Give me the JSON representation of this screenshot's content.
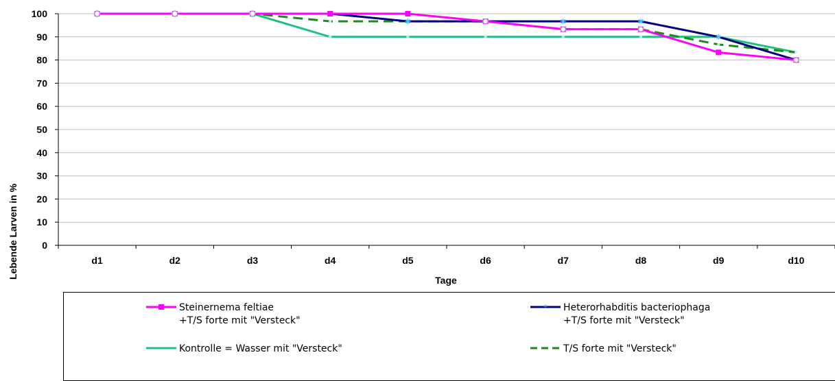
{
  "chart_data": {
    "type": "line",
    "categories": [
      "d1",
      "d2",
      "d3",
      "d4",
      "d5",
      "d6",
      "d7",
      "d8",
      "d9",
      "d10"
    ],
    "xlabel": "Tage",
    "ylabel": "Lebende Larven in %",
    "ylim": [
      0,
      100
    ],
    "yticks": [
      0,
      10,
      20,
      30,
      40,
      50,
      60,
      70,
      80,
      90,
      100
    ],
    "grid": true,
    "legend_position": "bottom",
    "series": [
      {
        "name_line1": "Steinernema feltiae",
        "name_line2": "+T/S forte mit \"Versteck\"",
        "color": "#ff00ff",
        "marker": "square",
        "dash": "solid",
        "values": [
          100,
          100,
          100,
          100,
          100,
          96.7,
          93.3,
          93.3,
          83.3,
          80
        ]
      },
      {
        "name_line1": "Heterorhabditis bacteriophaga",
        "name_line2": "+T/S forte mit \"Versteck\"",
        "color": "#000080",
        "marker": "star",
        "dash": "solid",
        "values": [
          100,
          100,
          100,
          100,
          96.7,
          96.7,
          96.7,
          96.7,
          90,
          80
        ]
      },
      {
        "name_line1": "Kontrolle = Wasser mit \"Versteck\"",
        "name_line2": "",
        "color": "#1fbf7f",
        "marker": "none",
        "dash": "solid",
        "values": [
          100,
          100,
          100,
          90,
          90,
          90,
          90,
          90,
          90,
          83.3
        ]
      },
      {
        "name_line1": "T/S forte mit \"Versteck\"",
        "name_line2": "",
        "color": "#1a8a1a",
        "marker": "none",
        "dash": "dashed",
        "values": [
          100,
          100,
          100,
          96.7,
          96.7,
          96.7,
          93.3,
          93.3,
          86.7,
          83.3
        ]
      }
    ]
  }
}
